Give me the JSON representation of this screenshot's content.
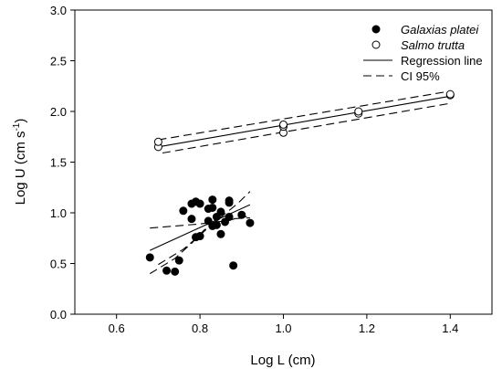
{
  "chart_data": {
    "type": "scatter",
    "xlabel": "Log L (cm)",
    "ylabel": "Log U (cm s⁻¹)",
    "xlim": [
      0.5,
      1.5
    ],
    "ylim": [
      0.0,
      3.0
    ],
    "x_ticks": [
      0.6,
      0.8,
      1.0,
      1.2,
      1.4
    ],
    "x_tick_labels": [
      "0.6",
      "0.8",
      "1.0",
      "1.2",
      "1.4"
    ],
    "y_ticks": [
      0.0,
      0.5,
      1.0,
      1.5,
      2.0,
      2.5,
      3.0
    ],
    "y_tick_labels": [
      "0.0",
      "0.5",
      "1.0",
      "1.5",
      "2.0",
      "2.5",
      "3.0"
    ],
    "legend_position": "top-right",
    "legend": [
      {
        "label": "Galaxias platei",
        "marker": "filled-circle",
        "italic": true
      },
      {
        "label": "Salmo trutta",
        "marker": "open-circle",
        "italic": true
      },
      {
        "label": "Regression line",
        "line": "solid",
        "italic": false
      },
      {
        "label": "CI 95%",
        "line": "dashed",
        "italic": false
      }
    ],
    "series": [
      {
        "name": "Galaxias platei",
        "marker": "filled-circle",
        "points": [
          [
            0.68,
            0.56
          ],
          [
            0.72,
            0.43
          ],
          [
            0.74,
            0.42
          ],
          [
            0.75,
            0.53
          ],
          [
            0.76,
            1.02
          ],
          [
            0.78,
            0.94
          ],
          [
            0.78,
            1.09
          ],
          [
            0.79,
            0.76
          ],
          [
            0.79,
            1.11
          ],
          [
            0.8,
            0.77
          ],
          [
            0.8,
            1.09
          ],
          [
            0.82,
            1.04
          ],
          [
            0.82,
            0.92
          ],
          [
            0.83,
            0.87
          ],
          [
            0.83,
            1.13
          ],
          [
            0.83,
            1.05
          ],
          [
            0.84,
            0.88
          ],
          [
            0.84,
            0.96
          ],
          [
            0.85,
            0.79
          ],
          [
            0.85,
            1.01
          ],
          [
            0.86,
            0.91
          ],
          [
            0.87,
            0.96
          ],
          [
            0.87,
            1.1
          ],
          [
            0.87,
            1.12
          ],
          [
            0.88,
            0.48
          ],
          [
            0.9,
            0.98
          ],
          [
            0.92,
            0.9
          ]
        ],
        "regression": [
          [
            0.68,
            0.63
          ],
          [
            0.92,
            1.08
          ]
        ],
        "ci_upper": [
          [
            0.7,
            0.49
          ],
          [
            0.76,
            0.64
          ],
          [
            0.8,
            0.78
          ],
          [
            0.83,
            0.89
          ],
          [
            0.86,
            0.99
          ],
          [
            0.89,
            1.09
          ],
          [
            0.92,
            1.21
          ]
        ],
        "ci_lower": [
          [
            0.68,
            0.4
          ],
          [
            0.74,
            0.55
          ],
          [
            0.78,
            0.7
          ],
          [
            0.81,
            0.83
          ],
          [
            0.84,
            0.9
          ],
          [
            0.87,
            0.94
          ],
          [
            0.92,
            0.95
          ]
        ],
        "ci_extra": [
          [
            0.68,
            0.85
          ],
          [
            0.74,
            0.87
          ],
          [
            0.8,
            0.89
          ],
          [
            0.86,
            0.92
          ],
          [
            0.92,
            0.97
          ]
        ]
      },
      {
        "name": "Salmo trutta",
        "marker": "open-circle",
        "points": [
          [
            0.7,
            1.65
          ],
          [
            0.7,
            1.7
          ],
          [
            1.0,
            1.79
          ],
          [
            1.0,
            1.85
          ],
          [
            1.0,
            1.87
          ],
          [
            1.18,
            1.98
          ],
          [
            1.18,
            2.0
          ],
          [
            1.4,
            2.16
          ],
          [
            1.4,
            2.17
          ]
        ],
        "regression": [
          [
            0.7,
            1.65
          ],
          [
            1.4,
            2.15
          ]
        ],
        "ci_upper": [
          [
            0.7,
            1.72
          ],
          [
            1.4,
            2.2
          ]
        ],
        "ci_lower": [
          [
            0.71,
            1.59
          ],
          [
            1.4,
            2.08
          ]
        ]
      }
    ]
  }
}
